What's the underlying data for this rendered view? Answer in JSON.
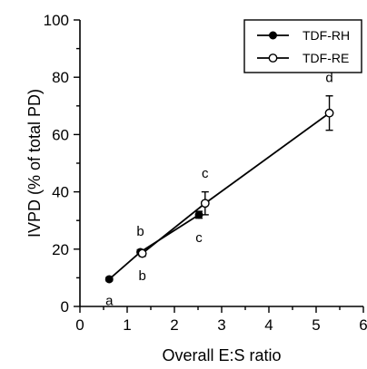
{
  "chart_data": {
    "type": "line",
    "title": "",
    "xlabel": "Overall E:S ratio",
    "ylabel": "IVPD (% of total PD)",
    "xlim": [
      0,
      6
    ],
    "ylim": [
      0,
      100
    ],
    "xticks": [
      "0",
      "1",
      "2",
      "3",
      "4",
      "5",
      "6"
    ],
    "yticks": [
      "0",
      "20",
      "40",
      "60",
      "80",
      "100"
    ],
    "grid": false,
    "legend_position": "top-right",
    "series": [
      {
        "name": "TDF-RH",
        "marker": "filled-circle",
        "points": [
          {
            "x": 0.62,
            "y": 9.5,
            "err": 0.6,
            "label": "a",
            "label_pos": "below"
          },
          {
            "x": 1.28,
            "y": 19.0,
            "err": 0.8,
            "label": "b",
            "label_pos": "above"
          },
          {
            "x": 2.52,
            "y": 32.0,
            "err": 1.2,
            "label": "c",
            "label_pos": "below"
          }
        ]
      },
      {
        "name": "TDF-RE",
        "marker": "open-circle",
        "points": [
          {
            "x": 1.32,
            "y": 18.5,
            "err": 1.0,
            "label": "b",
            "label_pos": "below"
          },
          {
            "x": 2.65,
            "y": 36.0,
            "err": 4.0,
            "label": "c",
            "label_pos": "above"
          },
          {
            "x": 5.28,
            "y": 67.5,
            "err": 6.0,
            "label": "d",
            "label_pos": "above"
          }
        ]
      }
    ]
  }
}
